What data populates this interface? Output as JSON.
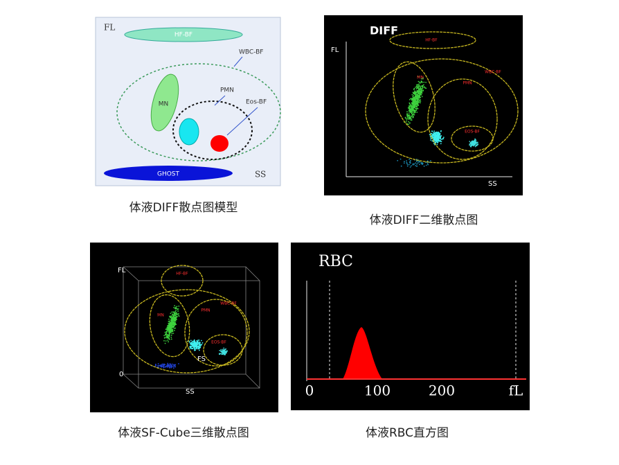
{
  "panels": [
    {
      "caption": "体液DIFF散点图模型",
      "axis_y": "FL",
      "axis_x": "SS",
      "labels": {
        "hf": "HF-BF",
        "wbc": "WBC-BF",
        "pmn": "PMN",
        "eos": "Eos-BF",
        "mn": "MN",
        "ghost": "GHOST"
      }
    },
    {
      "caption": "体液DIFF二维散点图",
      "title": "DIFF",
      "axis_y": "FL",
      "axis_x": "SS",
      "labels": {
        "hf": "HF-BF",
        "mn": "MN",
        "wbc": "WBC-BF",
        "pmn": "PMN",
        "eos": "EOS-BF"
      }
    },
    {
      "caption": "体液SF-Cube三维散点图",
      "axis_y": "FL",
      "axis_x": "SS",
      "axis_z": "FS",
      "origin": "0",
      "labels": {
        "hf": "HF-BF",
        "mn": "MN",
        "wbc": "WBC-BF",
        "pmn": "PMN",
        "eos": "EOS-BF"
      }
    },
    {
      "caption": "体液RBC直方图",
      "title": "RBC",
      "ticks": [
        "0",
        "100",
        "200",
        "fL"
      ]
    }
  ]
}
